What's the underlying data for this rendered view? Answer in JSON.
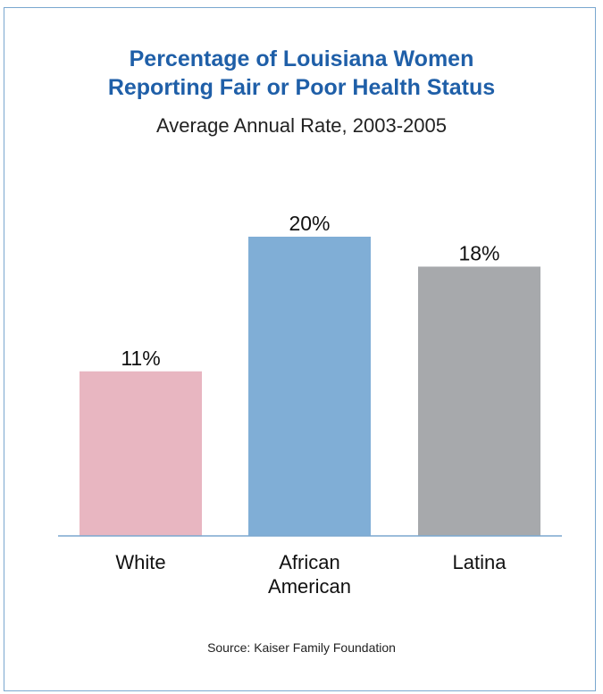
{
  "chart_data": {
    "type": "bar",
    "title_lines": [
      "Percentage of Louisiana Women",
      "Reporting Fair or Poor Health Status"
    ],
    "subtitle": "Average Annual Rate, 2003-2005",
    "categories": [
      [
        "White"
      ],
      [
        "African",
        "American"
      ],
      [
        "Latina"
      ]
    ],
    "values": [
      11,
      20,
      18
    ],
    "value_labels": [
      "11%",
      "20%",
      "18%"
    ],
    "colors": [
      "#e8b6c1",
      "#80aed6",
      "#a7a9ac"
    ],
    "ylim": [
      0,
      20
    ],
    "grid": false,
    "legend": false
  },
  "source": "Source: Kaiser Family Foundation",
  "colors": {
    "title": "#1f5fa8",
    "frame": "#7aa7cf",
    "baseline": "#7aa7cf"
  }
}
